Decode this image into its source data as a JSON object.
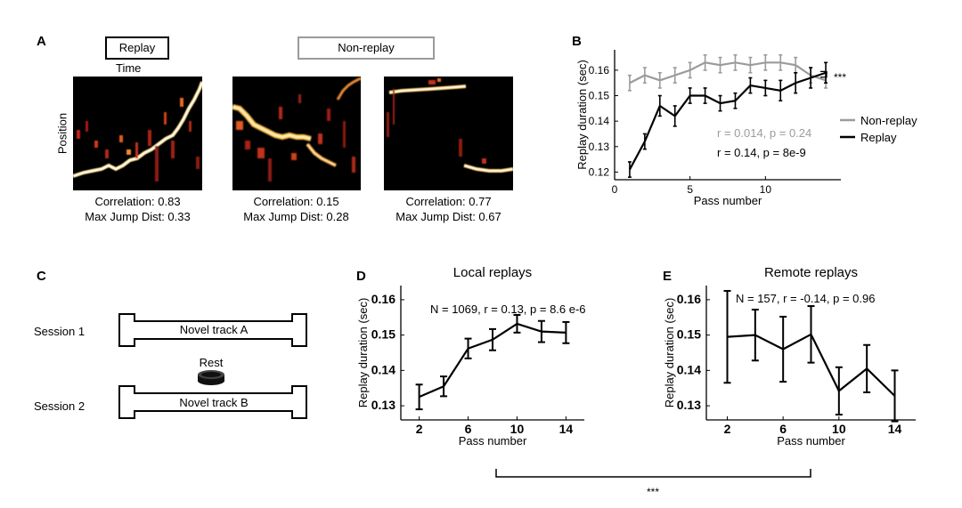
{
  "panel_letters": {
    "a": "A",
    "b": "B",
    "c": "C",
    "d": "D",
    "e": "E"
  },
  "panel_a": {
    "replay_box": "Replay",
    "nonreplay_box": "Non-replay",
    "time_label": "Time",
    "position_label": "Position",
    "maps": [
      {
        "correlation": "Correlation: 0.83",
        "jump": "Max Jump Dist: 0.33"
      },
      {
        "correlation": "Correlation: 0.15",
        "jump": "Max Jump Dist: 0.28"
      },
      {
        "correlation": "Correlation: 0.77",
        "jump": "Max Jump Dist: 0.67"
      }
    ]
  },
  "panel_c": {
    "session1": "Session 1",
    "session2": "Session 2",
    "track_a": "Novel track A",
    "track_b": "Novel track B",
    "rest": "Rest"
  },
  "colors": {
    "nonreplay": "#9b9b9b",
    "replay": "#000000",
    "heat_bg": "#000000"
  },
  "chart_data": [
    {
      "panel": "B",
      "type": "line",
      "xlabel": "Pass number",
      "ylabel": "Replay duration (sec)",
      "xlim": [
        0,
        15
      ],
      "ylim": [
        0.117,
        0.168
      ],
      "xticks": [
        0,
        5,
        10
      ],
      "yticks": [
        0.12,
        0.13,
        0.14,
        0.15,
        0.16
      ],
      "legend": {
        "placement": "right",
        "entries": [
          "Non-replay",
          "Replay"
        ]
      },
      "annotations": {
        "nonreplay_stats": "r = 0.014, p = 0.24",
        "replay_stats": "r = 0.14, p = 8e-9",
        "significance": "***"
      },
      "series": [
        {
          "name": "Non-replay",
          "x": [
            1,
            2,
            3,
            4,
            5,
            6,
            7,
            8,
            9,
            10,
            11,
            12,
            13,
            14
          ],
          "y": [
            0.155,
            0.158,
            0.156,
            0.158,
            0.16,
            0.163,
            0.162,
            0.163,
            0.162,
            0.163,
            0.163,
            0.162,
            0.158,
            0.156
          ],
          "err": [
            0.003,
            0.003,
            0.003,
            0.003,
            0.003,
            0.003,
            0.003,
            0.003,
            0.003,
            0.003,
            0.003,
            0.003,
            0.003,
            0.003
          ]
        },
        {
          "name": "Replay",
          "x": [
            1,
            2,
            3,
            4,
            5,
            6,
            7,
            8,
            9,
            10,
            11,
            12,
            13,
            14
          ],
          "y": [
            0.121,
            0.132,
            0.146,
            0.142,
            0.15,
            0.15,
            0.147,
            0.148,
            0.154,
            0.153,
            0.152,
            0.155,
            0.157,
            0.159
          ],
          "err": [
            0.003,
            0.003,
            0.004,
            0.004,
            0.003,
            0.003,
            0.003,
            0.003,
            0.003,
            0.003,
            0.004,
            0.004,
            0.004,
            0.004
          ]
        }
      ]
    },
    {
      "panel": "D",
      "type": "line",
      "title": "Local replays",
      "xlabel": "Pass number",
      "ylabel": "Replay duration (sec)",
      "xlim": [
        0.5,
        15.5
      ],
      "ylim": [
        0.126,
        0.164
      ],
      "xticks": [
        2,
        6,
        10,
        14
      ],
      "yticks": [
        0.13,
        0.14,
        0.15,
        0.16
      ],
      "annotation": "N = 1069, r = 0.13, p = 8.6 e-6",
      "series": [
        {
          "x": [
            2,
            4,
            6,
            8,
            10,
            12,
            14
          ],
          "y": [
            0.1325,
            0.1355,
            0.1462,
            0.1487,
            0.1532,
            0.151,
            0.1507
          ],
          "err": [
            0.0035,
            0.0028,
            0.0028,
            0.003,
            0.0025,
            0.003,
            0.003
          ]
        }
      ]
    },
    {
      "panel": "E",
      "type": "line",
      "title": "Remote replays",
      "xlabel": "Pass number",
      "ylabel": "Replay duration (sec)",
      "xlim": [
        0.5,
        15.5
      ],
      "ylim": [
        0.126,
        0.164
      ],
      "xticks": [
        2,
        6,
        10,
        14
      ],
      "yticks": [
        0.13,
        0.14,
        0.15,
        0.16
      ],
      "annotation": "N = 157, r = -0.14, p = 0.96",
      "series": [
        {
          "x": [
            2,
            4,
            6,
            8,
            10,
            12,
            14
          ],
          "y": [
            0.1495,
            0.15,
            0.146,
            0.1502,
            0.1342,
            0.1405,
            0.1328
          ],
          "err": [
            0.013,
            0.0072,
            0.0092,
            0.008,
            0.0067,
            0.0067,
            0.0072
          ]
        }
      ]
    }
  ],
  "bottom_bracket": {
    "significance": "***"
  }
}
